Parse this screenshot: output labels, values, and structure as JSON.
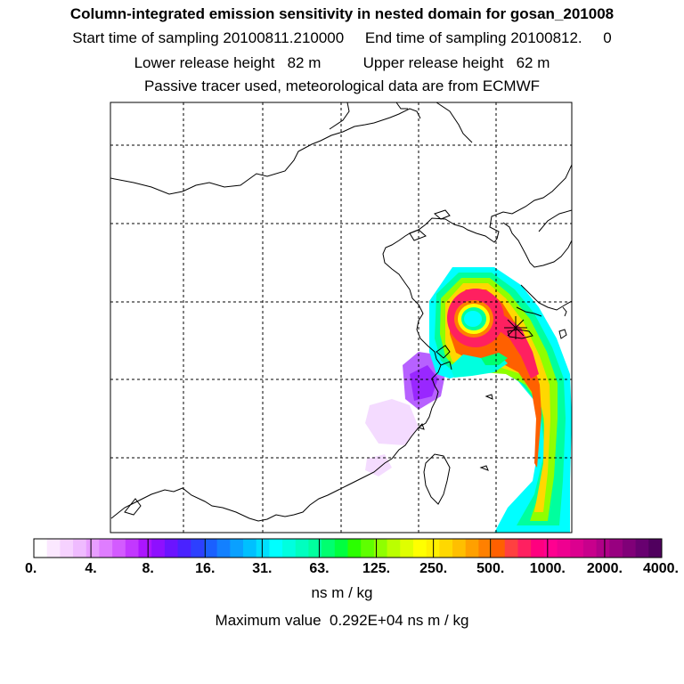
{
  "header": {
    "title": "Column-integrated emission sensitivity in nested domain for gosan_201008",
    "sampling_line": "Start time of sampling 20100811.210000     End time of sampling 20100812.     0",
    "release_line": "Lower release height   82 m          Upper release height   62 m",
    "tracer_line": "Passive tracer used, meteorological data are from ECMWF"
  },
  "colorbar": {
    "tick_labels": [
      "0.",
      "4.",
      "8.",
      "16.",
      "31.",
      "63.",
      "125.",
      "250.",
      "500.",
      "1000.",
      "2000.",
      "4000."
    ],
    "colors": [
      "#ffffff",
      "#fbe8ff",
      "#f6d2ff",
      "#efbbff",
      "#e89eff",
      "#df7dff",
      "#d35bff",
      "#c238ff",
      "#ac15ff",
      "#8e10ff",
      "#6b14ff",
      "#4a22ff",
      "#2d40ff",
      "#1a60ff",
      "#1380ff",
      "#0aa0ff",
      "#00c0ff",
      "#00dfff",
      "#00ffff",
      "#00ffdf",
      "#00ffbf",
      "#00ff9e",
      "#00ff6f",
      "#00ff3f",
      "#2bff00",
      "#5fff00",
      "#8fff00",
      "#bbff00",
      "#dfff00",
      "#ffff00",
      "#fff000",
      "#ffd800",
      "#ffbf00",
      "#ffa000",
      "#ff8000",
      "#ff6000",
      "#ff4040",
      "#ff2060",
      "#ff007f",
      "#ff0090",
      "#ef0090",
      "#dc008f",
      "#c8008c",
      "#b00088",
      "#980080",
      "#800078",
      "#680070",
      "#50005e"
    ],
    "units_label": "ns m / kg",
    "max_label": "Maximum value  0.292E+04 ns m / kg"
  },
  "map": {
    "grid_style": "dashed",
    "receptor_marker": "star-icon"
  }
}
